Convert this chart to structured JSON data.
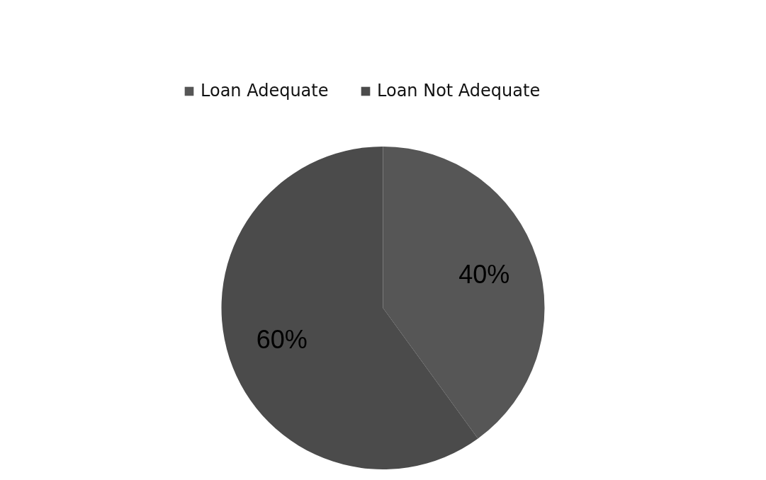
{
  "chart_data": {
    "type": "pie",
    "categories": [
      "Loan Adequate",
      "Loan Not Adequate"
    ],
    "values": [
      40,
      60
    ],
    "colors": [
      "#565656",
      "#4b4b4b"
    ],
    "value_labels": [
      "40%",
      "60%"
    ],
    "legend": "top"
  }
}
